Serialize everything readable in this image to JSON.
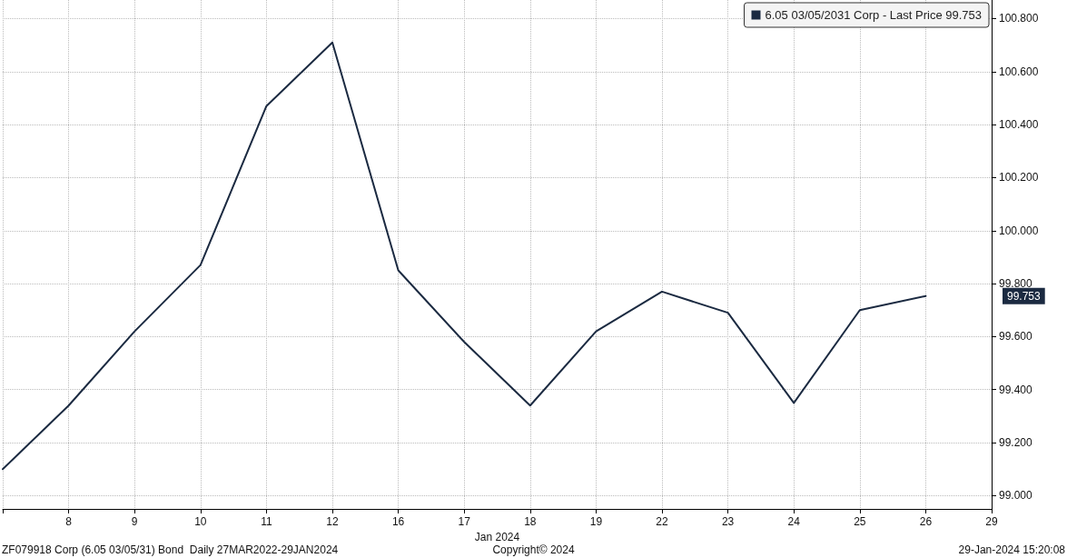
{
  "chart_data": {
    "type": "line",
    "xlabel": "Jan 2024",
    "categories": [
      null,
      "8",
      "9",
      "10",
      "11",
      "12",
      "16",
      "17",
      "18",
      "19",
      "22",
      "23",
      "24",
      "25",
      "26",
      "29"
    ],
    "series": [
      {
        "name": "6.05 03/05/2031 Corp - Last Price 99.753",
        "color": "#1b2a41",
        "values": [
          99.1,
          99.34,
          99.62,
          99.87,
          100.47,
          100.71,
          99.85,
          99.58,
          99.34,
          99.62,
          99.77,
          99.69,
          99.35,
          99.7,
          99.753,
          null
        ]
      }
    ],
    "ylim": [
      98.95,
      100.87
    ],
    "yticks": [
      {
        "value": 99,
        "label": "99.000"
      },
      {
        "value": 99.2,
        "label": "99.200"
      },
      {
        "value": 99.4,
        "label": "99.400"
      },
      {
        "value": 99.6,
        "label": "99.600"
      },
      {
        "value": 99.8,
        "label": "99.800"
      },
      {
        "value": 100,
        "label": "100.000"
      },
      {
        "value": 100.2,
        "label": "100.200"
      },
      {
        "value": 100.4,
        "label": "100.400"
      },
      {
        "value": 100.6,
        "label": "100.600"
      },
      {
        "value": 100.8,
        "label": "100.800"
      }
    ],
    "grid": true,
    "legend": "top right",
    "marker": "none",
    "line_style": "solid",
    "annotations": [
      "99.753",
      "ZF079918 Corp (6.05 03/05/31) Bond  Daily 27MAR2022-29JAN2024",
      "Copyright© 2024",
      "29-Jan-2024 15:20:08"
    ]
  }
}
